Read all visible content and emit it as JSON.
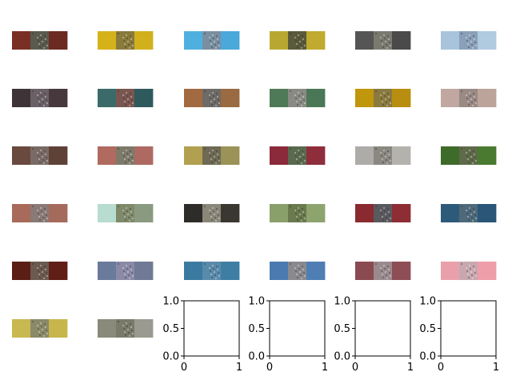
{
  "figure": {
    "background": "#ffffff"
  },
  "thumbnails": [
    {
      "colors": [
        "#7a2f24",
        "#5a5a4e",
        "#6b2a22"
      ]
    },
    {
      "colors": [
        "#d6b21a",
        "#8a7a3c",
        "#d2b01c"
      ]
    },
    {
      "colors": [
        "#4fb0e0",
        "#7a8fa0",
        "#4aa8da"
      ]
    },
    {
      "colors": [
        "#b8a832",
        "#5a5a3c",
        "#c0aa30"
      ]
    },
    {
      "colors": [
        "#555555",
        "#7a7a70",
        "#4a4a4a"
      ]
    },
    {
      "colors": [
        "#a8c4dc",
        "#8aa0b8",
        "#b0cae0"
      ]
    },
    {
      "colors": [
        "#3e3438",
        "#6a6066",
        "#46383c"
      ]
    },
    {
      "colors": [
        "#3a6a6a",
        "#7a5650",
        "#2e5a5e"
      ]
    },
    {
      "colors": [
        "#a26a40",
        "#6e6a66",
        "#9a6a42"
      ]
    },
    {
      "colors": [
        "#4e7a58",
        "#8a8a84",
        "#4a7856"
      ]
    },
    {
      "colors": [
        "#c0960c",
        "#8a7a40",
        "#b88e10"
      ]
    },
    {
      "colors": [
        "#c0a8a0",
        "#9a8a86",
        "#bca49a"
      ]
    },
    {
      "colors": [
        "#6a4a3e",
        "#7a6a66",
        "#5e4238"
      ]
    },
    {
      "colors": [
        "#b06a60",
        "#7e7a6a",
        "#ae6a62"
      ]
    },
    {
      "colors": [
        "#b0a050",
        "#6e6a54",
        "#9a9256"
      ]
    },
    {
      "colors": [
        "#8a2a3a",
        "#5a6a4e",
        "#8e2e3c"
      ]
    },
    {
      "colors": [
        "#aeaca8",
        "#8a8880",
        "#b4b2ac"
      ]
    },
    {
      "colors": [
        "#3e6a2a",
        "#5e6a4a",
        "#4a7a30"
      ]
    },
    {
      "colors": [
        "#a86a5a",
        "#8a7a76",
        "#a46a5c"
      ]
    },
    {
      "colors": [
        "#b8dcd0",
        "#7e8a6a",
        "#8a9a80"
      ]
    },
    {
      "colors": [
        "#2e2c28",
        "#8a867a",
        "#3a3630"
      ]
    },
    {
      "colors": [
        "#8aa06a",
        "#6a7a4e",
        "#8ea46e"
      ]
    },
    {
      "colors": [
        "#8a2a30",
        "#5a5a5e",
        "#8e2e34"
      ]
    },
    {
      "colors": [
        "#2e5a7a",
        "#4e6a7a",
        "#2a5678"
      ]
    },
    {
      "colors": [
        "#5a1e14",
        "#6a5a50",
        "#601e16"
      ]
    },
    {
      "colors": [
        "#6a7a9a",
        "#8a8aa6",
        "#707a96"
      ]
    },
    {
      "colors": [
        "#3a7aa0",
        "#5a8aaa",
        "#3e7ea4"
      ]
    },
    {
      "colors": [
        "#4a7ab0",
        "#8a8a8e",
        "#4e7eb4"
      ]
    },
    {
      "colors": [
        "#8a4a50",
        "#9a8a8e",
        "#8e4e56"
      ]
    },
    {
      "colors": [
        "#eaa0aa",
        "#c8a8b0",
        "#ee9ea8"
      ]
    },
    {
      "colors": [
        "#c8b850",
        "#8a8a6a",
        "#c6b64c"
      ]
    },
    {
      "colors": [
        "#8a8a7a",
        "#7a7a6a",
        "#9a9a90"
      ]
    }
  ],
  "empty_axes": [
    {
      "x_ticks": [
        "0",
        "1"
      ],
      "y_ticks": [
        "0.0",
        "0.5",
        "1.0"
      ]
    },
    {
      "x_ticks": [
        "0",
        "1"
      ],
      "y_ticks": [
        "0.0",
        "0.5",
        "1.0"
      ]
    },
    {
      "x_ticks": [
        "0",
        "1"
      ],
      "y_ticks": [
        "0.0",
        "0.5",
        "1.0"
      ]
    },
    {
      "x_ticks": [
        "0",
        "1"
      ],
      "y_ticks": [
        "0.0",
        "0.5",
        "1.0"
      ]
    }
  ],
  "chart_data": {
    "type": "table",
    "grid_rows": 6,
    "grid_cols": 6,
    "image_panels": 32,
    "empty_panels": 4,
    "empty_axis_xlim": [
      0,
      1
    ],
    "empty_axis_ylim": [
      0,
      1
    ],
    "title": "",
    "xlabel": "",
    "ylabel": ""
  }
}
